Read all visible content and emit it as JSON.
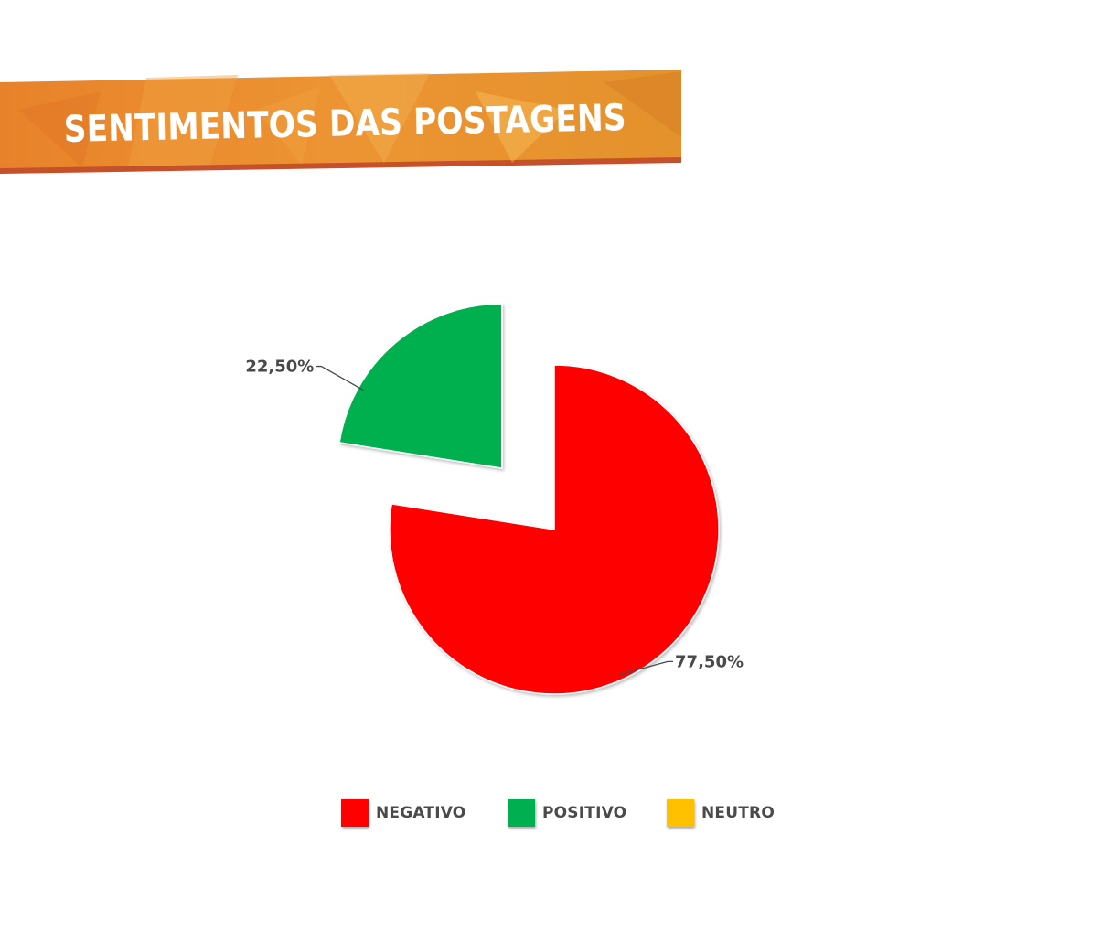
{
  "title": "SENTIMENTOS DAS POSTAGENS",
  "colors": {
    "banner_main": "#e88a2a",
    "banner_dark": "#c5522a",
    "negativo": "#ff0000",
    "positivo": "#00b050",
    "neutro": "#ffc000"
  },
  "chart_data": {
    "type": "pie",
    "title": "SENTIMENTOS DAS POSTAGENS",
    "categories": [
      "NEGATIVO",
      "POSITIVO",
      "NEUTRO"
    ],
    "values": [
      77.5,
      22.5,
      0
    ],
    "labels": [
      "77,50%",
      "22,50%",
      ""
    ],
    "colors": [
      "#ff0000",
      "#00b050",
      "#ffc000"
    ],
    "exploded": [
      "POSITIVO"
    ],
    "legend_position": "bottom"
  },
  "legend": [
    {
      "label": "NEGATIVO",
      "color": "#ff0000"
    },
    {
      "label": "POSITIVO",
      "color": "#00b050"
    },
    {
      "label": "NEUTRO",
      "color": "#ffc000"
    }
  ]
}
